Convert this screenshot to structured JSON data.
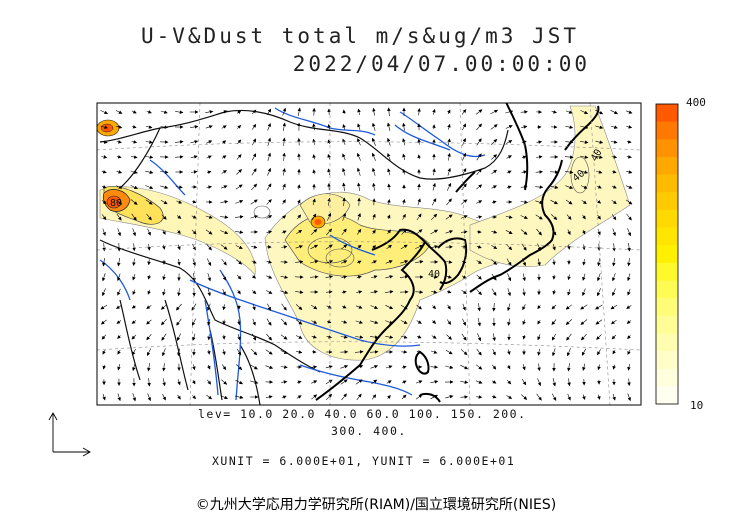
{
  "header": {
    "title": "U-V&Dust total m/s&ug/m3 JST",
    "datetime": "2022/04/07.00:00:00"
  },
  "colorbar": {
    "max_label": "400",
    "min_label": "10",
    "colors": [
      "#ff5a00",
      "#ff7800",
      "#ff9200",
      "#ffa800",
      "#ffbb00",
      "#ffcb00",
      "#ffd900",
      "#ffe600",
      "#fff000",
      "#fff82a",
      "#fffb55",
      "#fffd78",
      "#fffe96",
      "#fffeb0",
      "#fffec8",
      "#fffedd",
      "#fffff0"
    ]
  },
  "contour_labels": [
    "40",
    "40",
    "40",
    "80"
  ],
  "levels": {
    "line1": "lev= 10.0 20.0 40.0 60.0 100. 150. 200.",
    "line2": "300. 400."
  },
  "units": {
    "text": "XUNIT = 6.000E+01, YUNIT = 6.000E+01"
  },
  "credit": "©九州大学応用力学研究所(RIAM)/国立環境研究所(NIES)",
  "colors": {
    "river": "#1e5adc",
    "coast": "#000000",
    "dust_light": "#fffbb0",
    "dust_mid": "#ffe84a",
    "dust_peak": "#ff5a00"
  }
}
